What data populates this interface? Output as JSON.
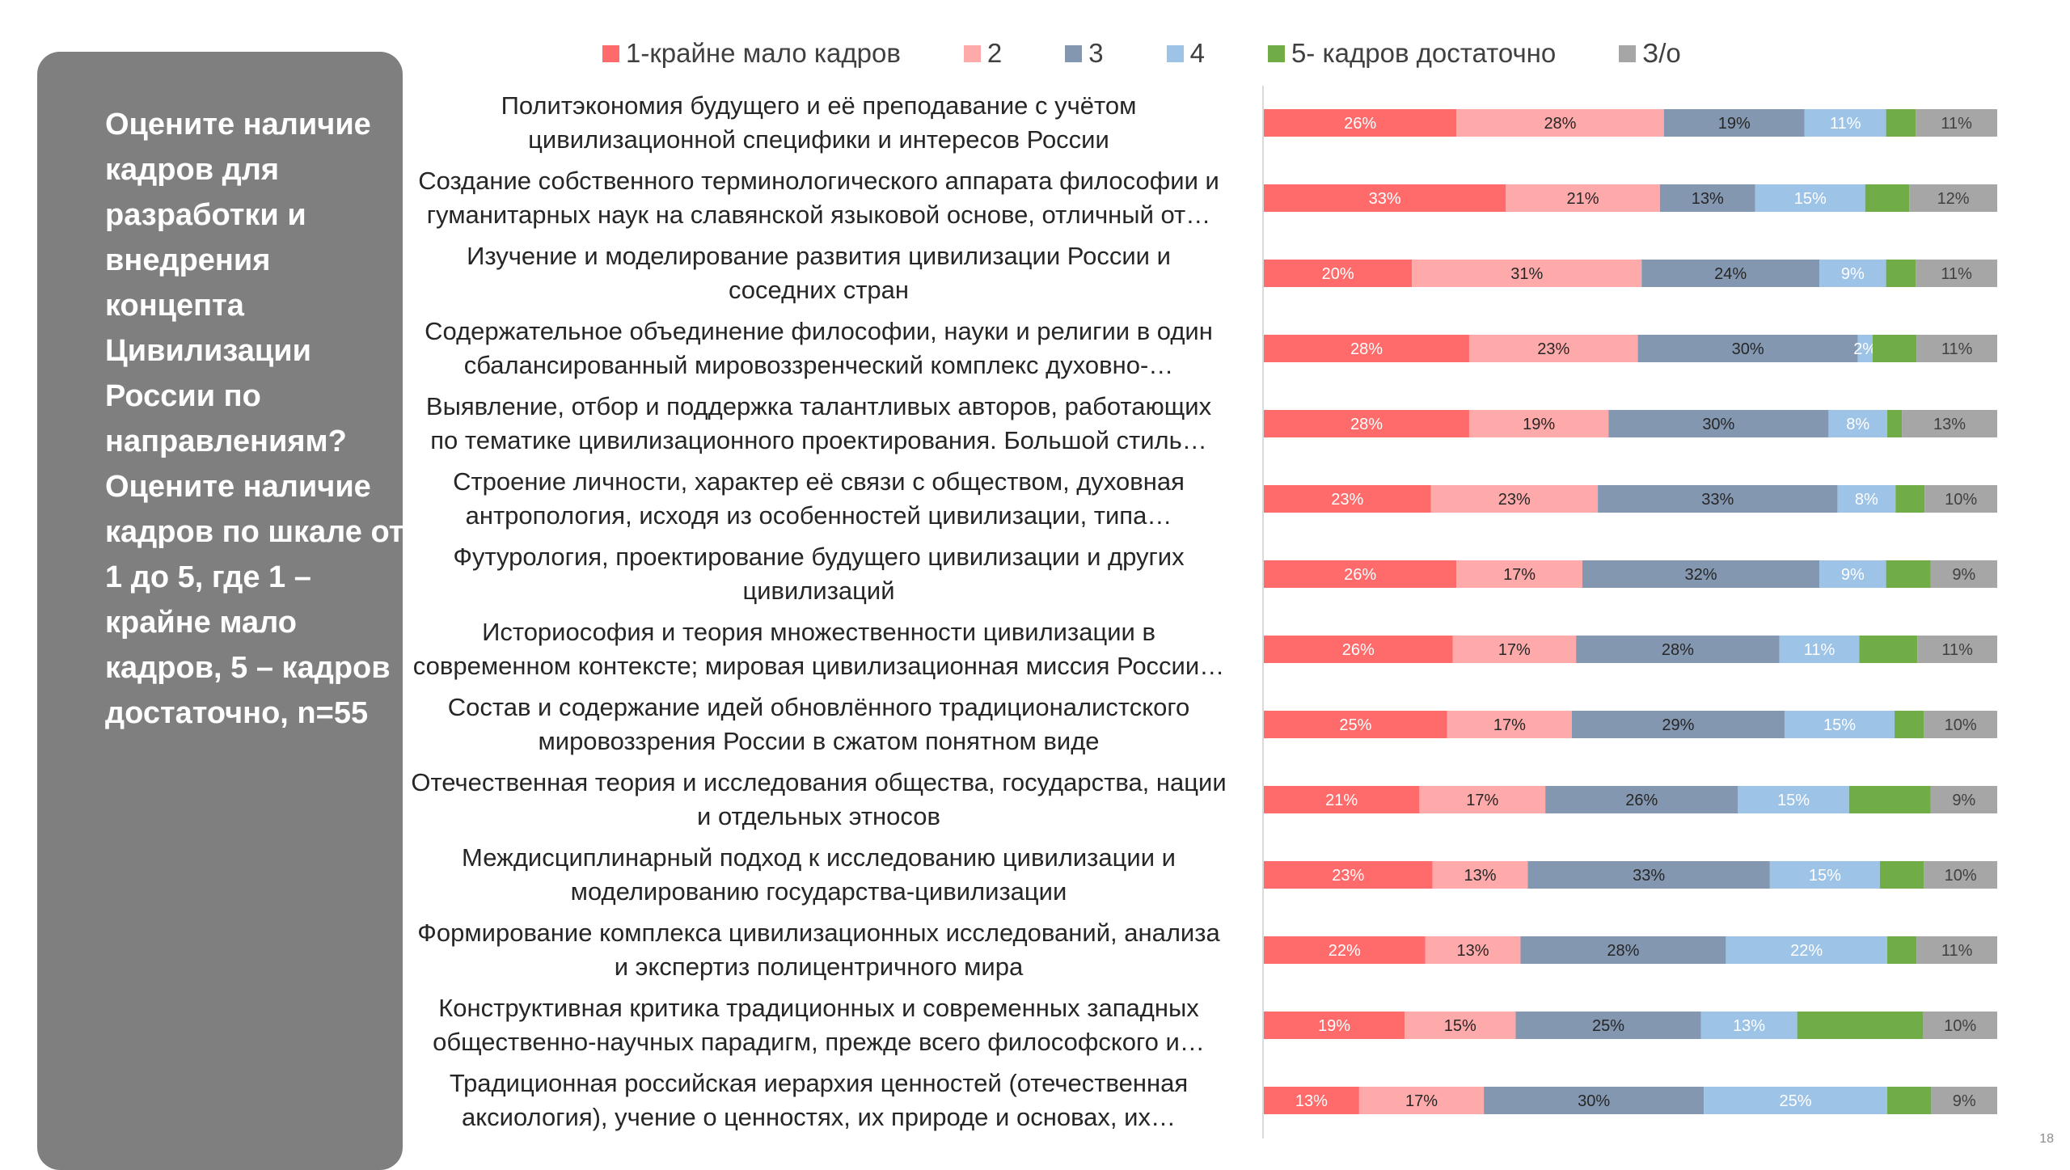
{
  "question": "Оцените наличие кадров для разработки и внедрения концепта Цивилизации России по направлениям? Оцените наличие кадров по шкале от 1 до 5, где 1 – крайне мало кадров, 5 – кадров достаточно, n=55",
  "page_number": "18",
  "colors": {
    "s1": "#ff6b6b",
    "s2": "#ffaaaa",
    "s3": "#8497b0",
    "s4": "#9dc3e6",
    "s5": "#70ad47",
    "s6": "#a6a6a6",
    "panel": "#7f7f7f"
  },
  "legend": [
    {
      "label": "1-крайне мало кадров",
      "color": "#ff6b6b"
    },
    {
      "label": "2",
      "color": "#ffaaaa"
    },
    {
      "label": "3",
      "color": "#8497b0"
    },
    {
      "label": "4",
      "color": "#9dc3e6"
    },
    {
      "label": "5- кадров достаточно",
      "color": "#70ad47"
    },
    {
      "label": "З/о",
      "color": "#a6a6a6"
    }
  ],
  "chart_data": {
    "type": "bar",
    "orientation": "horizontal",
    "stacked": "100%",
    "unit": "%",
    "categories": [
      "Политэкономия будущего и её преподавание с учётом цивилизационной специфики и интересов России",
      "Создание собственного терминологического аппарата философии и гуманитарных наук на славянской языковой основе, отличный от…",
      "Изучение и моделирование развития цивилизации России и соседних стран",
      "Содержательное объединение философии, науки и религии в один сбалансированный мировоззренческий комплекс духовно-…",
      "Выявление, отбор и поддержка талантливых авторов, работающих по тематике цивилизационного проектирования. Большой стиль…",
      "Строение личности, характер её связи с обществом, духовная антропология, исходя из особенностей цивилизации, типа…",
      "Футурология, проектирование будущего цивилизации и других цивилизаций",
      "Историософия и теория множественности цивилизации в современном контексте; мировая цивилизационная миссия России…",
      "Состав и содержание идей обновлённого традиционалистского мировоззрения России в сжатом понятном виде",
      "Отечественная теория и исследования общества, государства, нации и отдельных этносов",
      "Междисциплинарный подход к исследованию цивилизации и моделированию государства-цивилизации",
      "Формирование комплекса цивилизационных исследований, анализа и экспертиз полицентричного мира",
      "Конструктивная критика традиционных и современных западных общественно-научных парадигм, прежде всего философского и…",
      "Традиционная российская иерархия ценностей (отечественная аксиология), учение о ценностях, их природе и основах, их…"
    ],
    "category_lines": [
      [
        "Политэкономия будущего и её преподавание с учётом",
        "цивилизационной специфики и интересов России"
      ],
      [
        "Создание собственного терминологического аппарата философии и",
        "гуманитарных наук на славянской языковой основе, отличный от…"
      ],
      [
        "Изучение и моделирование развития цивилизации России и",
        "соседних стран"
      ],
      [
        "Содержательное объединение философии, науки и религии в один",
        "сбалансированный мировоззренческий комплекс духовно-…"
      ],
      [
        "Выявление, отбор и поддержка талантливых авторов, работающих",
        "по тематике цивилизационного проектирования. Большой стиль…"
      ],
      [
        "Строение личности, характер её связи с обществом, духовная",
        "антропология, исходя из особенностей цивилизации, типа…"
      ],
      [
        "Футурология, проектирование будущего цивилизации и других",
        "цивилизаций"
      ],
      [
        "Историософия и теория множественности цивилизации в",
        "современном контексте; мировая цивилизационная миссия России…"
      ],
      [
        "Состав и содержание идей обновлённого традиционалистского",
        "мировоззрения России в сжатом понятном виде"
      ],
      [
        "Отечественная теория и исследования общества, государства, нации",
        "и отдельных этносов"
      ],
      [
        "Междисциплинарный подход к исследованию цивилизации и",
        "моделированию государства-цивилизации"
      ],
      [
        "Формирование комплекса цивилизационных исследований, анализа",
        "и экспертиз полицентричного мира"
      ],
      [
        "Конструктивная критика традиционных и современных западных",
        "общественно-научных парадигм, прежде всего философского и…"
      ],
      [
        "Традиционная российская иерархия ценностей (отечественная",
        "аксиология), учение о ценностях, их природе и основах, их…"
      ]
    ],
    "series": [
      {
        "name": "1-крайне мало кадров",
        "color": "#ff6b6b",
        "values": [
          26,
          33,
          20,
          28,
          28,
          23,
          26,
          26,
          25,
          21,
          23,
          22,
          19,
          13
        ]
      },
      {
        "name": "2",
        "color": "#ffaaaa",
        "values": [
          28,
          21,
          31,
          23,
          19,
          23,
          17,
          17,
          17,
          17,
          13,
          13,
          15,
          17
        ]
      },
      {
        "name": "3",
        "color": "#8497b0",
        "values": [
          19,
          13,
          24,
          30,
          30,
          33,
          32,
          28,
          29,
          26,
          33,
          28,
          25,
          30
        ]
      },
      {
        "name": "4",
        "color": "#9dc3e6",
        "values": [
          11,
          15,
          9,
          2,
          8,
          8,
          9,
          11,
          15,
          15,
          15,
          22,
          13,
          25
        ]
      },
      {
        "name": "5- кадров достаточно",
        "color": "#70ad47",
        "values": [
          4,
          6,
          4,
          6,
          2,
          4,
          6,
          8,
          4,
          11,
          6,
          4,
          17,
          6
        ]
      },
      {
        "name": "З/о",
        "color": "#a6a6a6",
        "values": [
          11,
          12,
          11,
          11,
          13,
          10,
          9,
          11,
          10,
          9,
          10,
          11,
          10,
          9
        ]
      }
    ],
    "label_colors": [
      "#ffffff",
      "#262626",
      "#262626",
      "#ffffff",
      "#ffffff",
      "#404040"
    ],
    "unlabeled_series": [
      "5- кадров достаточно"
    ],
    "xlim": [
      0,
      100
    ],
    "legend_position": "top",
    "grid": false
  }
}
